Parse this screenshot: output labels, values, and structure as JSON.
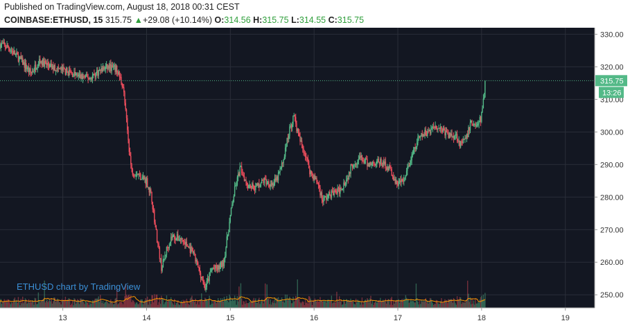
{
  "header": {
    "published": "Published on TradingView.com, August 18, 2018 00:31 CEST",
    "symbol": "COINBASE:ETHUSD, 15",
    "last": "315.75",
    "change_arrow": "▲",
    "change": "+29.08 (+10.14%)",
    "o_label": "O:",
    "o_value": "314.56",
    "h_label": "H:",
    "h_value": "315.75",
    "l_label": "L:",
    "l_value": "314.55",
    "c_label": "C:",
    "c_value": "315.75"
  },
  "watermark": "ETHUSD chart by TradingView",
  "price_tag": "315.75",
  "time_tag": "13:26",
  "colors": {
    "background": "#131722",
    "up": "#53b987",
    "down": "#eb4d5c",
    "volume_ma": "#ff9800",
    "price_line": "#53b987",
    "tag_bg": "#53b987"
  },
  "chart_data": {
    "type": "candlestick",
    "x_ticks": [
      "13",
      "14",
      "15",
      "16",
      "17",
      "18",
      "19"
    ],
    "y_ticks": [
      "250.00",
      "260.00",
      "270.00",
      "280.00",
      "290.00",
      "300.00",
      "310.00",
      "320.00",
      "330.00"
    ],
    "ylim": [
      246,
      332
    ],
    "xlim": [
      12.25,
      19.35
    ],
    "last_price": 315.75,
    "grid": true,
    "volume_overlay": true,
    "price_path": [
      [
        12.25,
        327
      ],
      [
        12.35,
        326
      ],
      [
        12.5,
        322
      ],
      [
        12.62,
        318
      ],
      [
        12.72,
        322
      ],
      [
        12.85,
        320
      ],
      [
        13.0,
        319
      ],
      [
        13.1,
        318
      ],
      [
        13.2,
        317
      ],
      [
        13.32,
        316.5
      ],
      [
        13.45,
        319
      ],
      [
        13.55,
        320
      ],
      [
        13.65,
        319
      ],
      [
        13.72,
        314
      ],
      [
        13.78,
        298
      ],
      [
        13.82,
        288
      ],
      [
        13.9,
        287
      ],
      [
        14.0,
        285
      ],
      [
        14.06,
        280
      ],
      [
        14.12,
        268
      ],
      [
        14.18,
        258
      ],
      [
        14.24,
        264
      ],
      [
        14.3,
        268
      ],
      [
        14.42,
        267
      ],
      [
        14.55,
        263
      ],
      [
        14.65,
        256
      ],
      [
        14.7,
        252
      ],
      [
        14.78,
        258
      ],
      [
        14.85,
        258
      ],
      [
        14.92,
        260
      ],
      [
        15.0,
        274
      ],
      [
        15.05,
        282
      ],
      [
        15.12,
        289
      ],
      [
        15.2,
        284
      ],
      [
        15.3,
        283
      ],
      [
        15.4,
        285
      ],
      [
        15.5,
        284
      ],
      [
        15.55,
        285
      ],
      [
        15.62,
        290
      ],
      [
        15.7,
        300
      ],
      [
        15.76,
        305
      ],
      [
        15.82,
        298
      ],
      [
        15.9,
        293
      ],
      [
        15.95,
        288
      ],
      [
        16.05,
        284
      ],
      [
        16.1,
        279
      ],
      [
        16.2,
        281
      ],
      [
        16.3,
        282
      ],
      [
        16.4,
        286
      ],
      [
        16.45,
        290
      ],
      [
        16.55,
        292
      ],
      [
        16.65,
        290
      ],
      [
        16.75,
        291
      ],
      [
        16.85,
        290
      ],
      [
        16.92,
        288
      ],
      [
        16.97,
        284
      ],
      [
        17.07,
        285
      ],
      [
        17.15,
        291
      ],
      [
        17.25,
        298
      ],
      [
        17.35,
        300
      ],
      [
        17.45,
        302
      ],
      [
        17.52,
        301
      ],
      [
        17.6,
        299
      ],
      [
        17.7,
        299
      ],
      [
        17.75,
        296
      ],
      [
        17.82,
        298
      ],
      [
        17.87,
        303
      ],
      [
        17.95,
        302
      ],
      [
        17.99,
        304
      ],
      [
        18.02,
        309
      ],
      [
        18.04,
        314
      ],
      [
        18.05,
        315.75
      ]
    ]
  }
}
